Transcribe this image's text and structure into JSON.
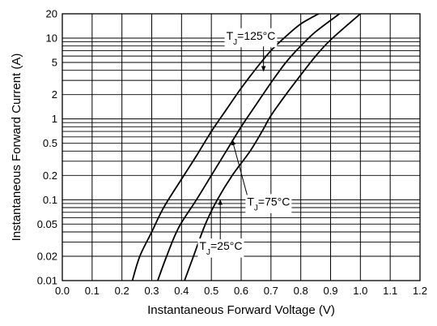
{
  "chart_data": {
    "type": "line",
    "title": "",
    "xlabel": "Instantaneous Forward Voltage (V)",
    "ylabel": "Instantaneous Forward Current (A)",
    "x_scale": "linear",
    "y_scale": "log",
    "xlim": [
      0.0,
      1.2
    ],
    "ylim": [
      0.01,
      20
    ],
    "x_ticks": [
      "0.0",
      "0.1",
      "0.2",
      "0.3",
      "0.4",
      "0.5",
      "0.6",
      "0.7",
      "0.8",
      "0.9",
      "1.0",
      "1.1",
      "1.2"
    ],
    "y_ticks": [
      {
        "value": 20,
        "label": "20"
      },
      {
        "value": 10,
        "label": "10"
      },
      {
        "value": 5,
        "label": "5"
      },
      {
        "value": 2,
        "label": "2"
      },
      {
        "value": 1,
        "label": "1"
      },
      {
        "value": 0.5,
        "label": "0.5"
      },
      {
        "value": 0.2,
        "label": "0.2"
      },
      {
        "value": 0.1,
        "label": "0.1"
      },
      {
        "value": 0.05,
        "label": "0.05"
      },
      {
        "value": 0.02,
        "label": "0.02"
      },
      {
        "value": 0.01,
        "label": "0.01"
      }
    ],
    "grid": true,
    "series": [
      {
        "name": "T_J=125°C",
        "label_main": "T",
        "label_sub": "J",
        "label_rest": "=125°C",
        "points": [
          [
            0.235,
            0.01
          ],
          [
            0.26,
            0.02
          ],
          [
            0.3,
            0.04
          ],
          [
            0.34,
            0.08
          ],
          [
            0.4,
            0.18
          ],
          [
            0.45,
            0.35
          ],
          [
            0.5,
            0.7
          ],
          [
            0.55,
            1.3
          ],
          [
            0.6,
            2.4
          ],
          [
            0.65,
            4.2
          ],
          [
            0.7,
            7.0
          ],
          [
            0.75,
            10.5
          ],
          [
            0.8,
            15.0
          ],
          [
            0.86,
            20.0
          ]
        ]
      },
      {
        "name": "T_J=75°C",
        "label_main": "T",
        "label_sub": "J",
        "label_rest": "=75°C",
        "points": [
          [
            0.32,
            0.01
          ],
          [
            0.35,
            0.02
          ],
          [
            0.39,
            0.045
          ],
          [
            0.45,
            0.1
          ],
          [
            0.5,
            0.2
          ],
          [
            0.55,
            0.4
          ],
          [
            0.6,
            0.8
          ],
          [
            0.65,
            1.5
          ],
          [
            0.7,
            2.8
          ],
          [
            0.75,
            5.0
          ],
          [
            0.8,
            8.0
          ],
          [
            0.85,
            12.0
          ],
          [
            0.93,
            20.0
          ]
        ]
      },
      {
        "name": "T_J=25°C",
        "label_main": "T",
        "label_sub": "J",
        "label_rest": "=25°C",
        "points": [
          [
            0.41,
            0.01
          ],
          [
            0.44,
            0.02
          ],
          [
            0.48,
            0.05
          ],
          [
            0.52,
            0.1
          ],
          [
            0.57,
            0.2
          ],
          [
            0.63,
            0.4
          ],
          [
            0.67,
            0.7
          ],
          [
            0.7,
            1.1
          ],
          [
            0.75,
            2.0
          ],
          [
            0.8,
            3.5
          ],
          [
            0.85,
            6.0
          ],
          [
            0.9,
            9.5
          ],
          [
            1.0,
            20.0
          ]
        ]
      }
    ],
    "annotations": [
      {
        "series": 0,
        "text_x": 0.55,
        "text_y": 9.6,
        "arrow_to": [
          0.675,
          3.9
        ]
      },
      {
        "series": 1,
        "text_x": 0.62,
        "text_y": 0.085,
        "arrow_to": [
          0.57,
          0.55
        ]
      },
      {
        "series": 2,
        "text_x": 0.46,
        "text_y": 0.024,
        "arrow_to": [
          0.53,
          0.1
        ]
      }
    ]
  }
}
